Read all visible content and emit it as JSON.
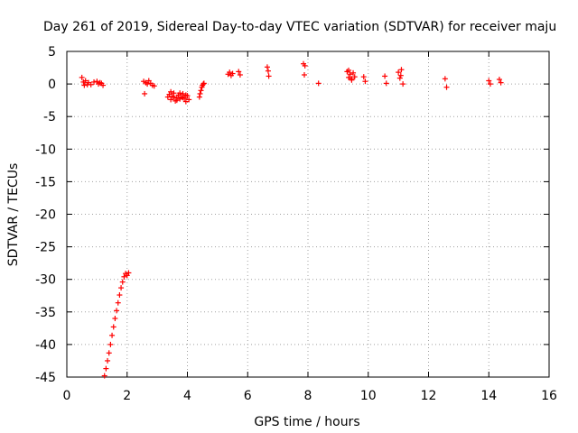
{
  "chart_data": {
    "type": "scatter",
    "title": "Day 261 of 2019, Sidereal Day-to-day VTEC variation (SDTVAR) for receiver maju",
    "xlabel": "GPS time / hours",
    "ylabel": "SDTVAR / TECUs",
    "xlim": [
      0,
      16
    ],
    "ylim": [
      -45,
      5
    ],
    "grid": true,
    "marker": "plus",
    "color": "#ff0000",
    "x_ticks": [
      0,
      2,
      4,
      6,
      8,
      10,
      12,
      14,
      16
    ],
    "y_ticks": [
      5,
      0,
      -5,
      -10,
      -15,
      -20,
      -25,
      -30,
      -35,
      -40,
      -45
    ],
    "x_tick_labels": [
      "0",
      "2",
      "4",
      "6",
      "8",
      "10",
      "12",
      "14",
      "16"
    ],
    "y_tick_labels": [
      "5",
      "0",
      "-5",
      "-10",
      "-15",
      "-20",
      "-25",
      "-30",
      "-35",
      "-40",
      "-45"
    ],
    "series": [
      {
        "name": "SDTVAR",
        "x": [
          0.5,
          0.55,
          0.58,
          0.62,
          0.68,
          0.72,
          0.8,
          0.9,
          1.0,
          1.05,
          1.1,
          1.15,
          1.2,
          2.55,
          2.58,
          2.62,
          2.67,
          2.72,
          2.78,
          2.84,
          2.9,
          3.35,
          3.4,
          3.45,
          3.5,
          3.55,
          3.6,
          3.65,
          3.7,
          3.75,
          3.8,
          3.85,
          3.9,
          3.95,
          4.0,
          4.05,
          3.45,
          3.55,
          3.65,
          3.75,
          3.85,
          3.95,
          4.4,
          4.45,
          4.5,
          4.55,
          4.42,
          4.48,
          4.53,
          5.35,
          5.4,
          5.45,
          5.5,
          5.7,
          5.75,
          6.65,
          6.7,
          6.68,
          7.85,
          7.9,
          7.88,
          8.35,
          9.3,
          9.35,
          9.4,
          9.45,
          9.5,
          9.55,
          9.35,
          9.45,
          9.85,
          9.9,
          10.55,
          10.6,
          11.0,
          11.05,
          11.1,
          11.15,
          11.08,
          12.55,
          12.6,
          14.0,
          14.05,
          14.35,
          14.4,
          1.25,
          1.3,
          1.35,
          1.4,
          1.45,
          1.5,
          1.55,
          1.6,
          1.65,
          1.7,
          1.75,
          1.8,
          1.85,
          1.9,
          1.95,
          2.0,
          2.05
        ],
        "y": [
          1.0,
          0.3,
          -0.2,
          0.5,
          -0.1,
          0.2,
          -0.1,
          0.3,
          0.4,
          0.0,
          0.2,
          0.1,
          -0.2,
          0.4,
          -1.5,
          0.2,
          0.0,
          0.5,
          0.1,
          -0.2,
          -0.3,
          -2.0,
          -1.6,
          -2.4,
          -1.9,
          -1.4,
          -2.6,
          -2.1,
          -1.7,
          -2.3,
          -2.0,
          -1.5,
          -2.2,
          -2.7,
          -1.8,
          -2.4,
          -1.2,
          -2.0,
          -2.5,
          -1.4,
          -2.1,
          -1.7,
          -2.0,
          -1.0,
          -0.2,
          0.1,
          -1.5,
          -0.5,
          0.0,
          1.5,
          1.8,
          1.3,
          1.6,
          1.9,
          1.4,
          2.6,
          1.2,
          2.0,
          3.1,
          2.8,
          1.4,
          0.1,
          1.9,
          1.0,
          1.5,
          0.6,
          1.7,
          1.1,
          2.1,
          0.8,
          1.1,
          0.4,
          1.2,
          0.1,
          1.8,
          0.9,
          2.2,
          0.0,
          1.3,
          0.8,
          -0.5,
          0.5,
          0.0,
          0.7,
          0.2,
          -44.8,
          -43.7,
          -42.5,
          -41.3,
          -40.0,
          -38.6,
          -37.3,
          -36.0,
          -34.8,
          -33.6,
          -32.4,
          -31.3,
          -30.4,
          -29.6,
          -29.1,
          -29.4,
          -29.0
        ]
      }
    ]
  }
}
